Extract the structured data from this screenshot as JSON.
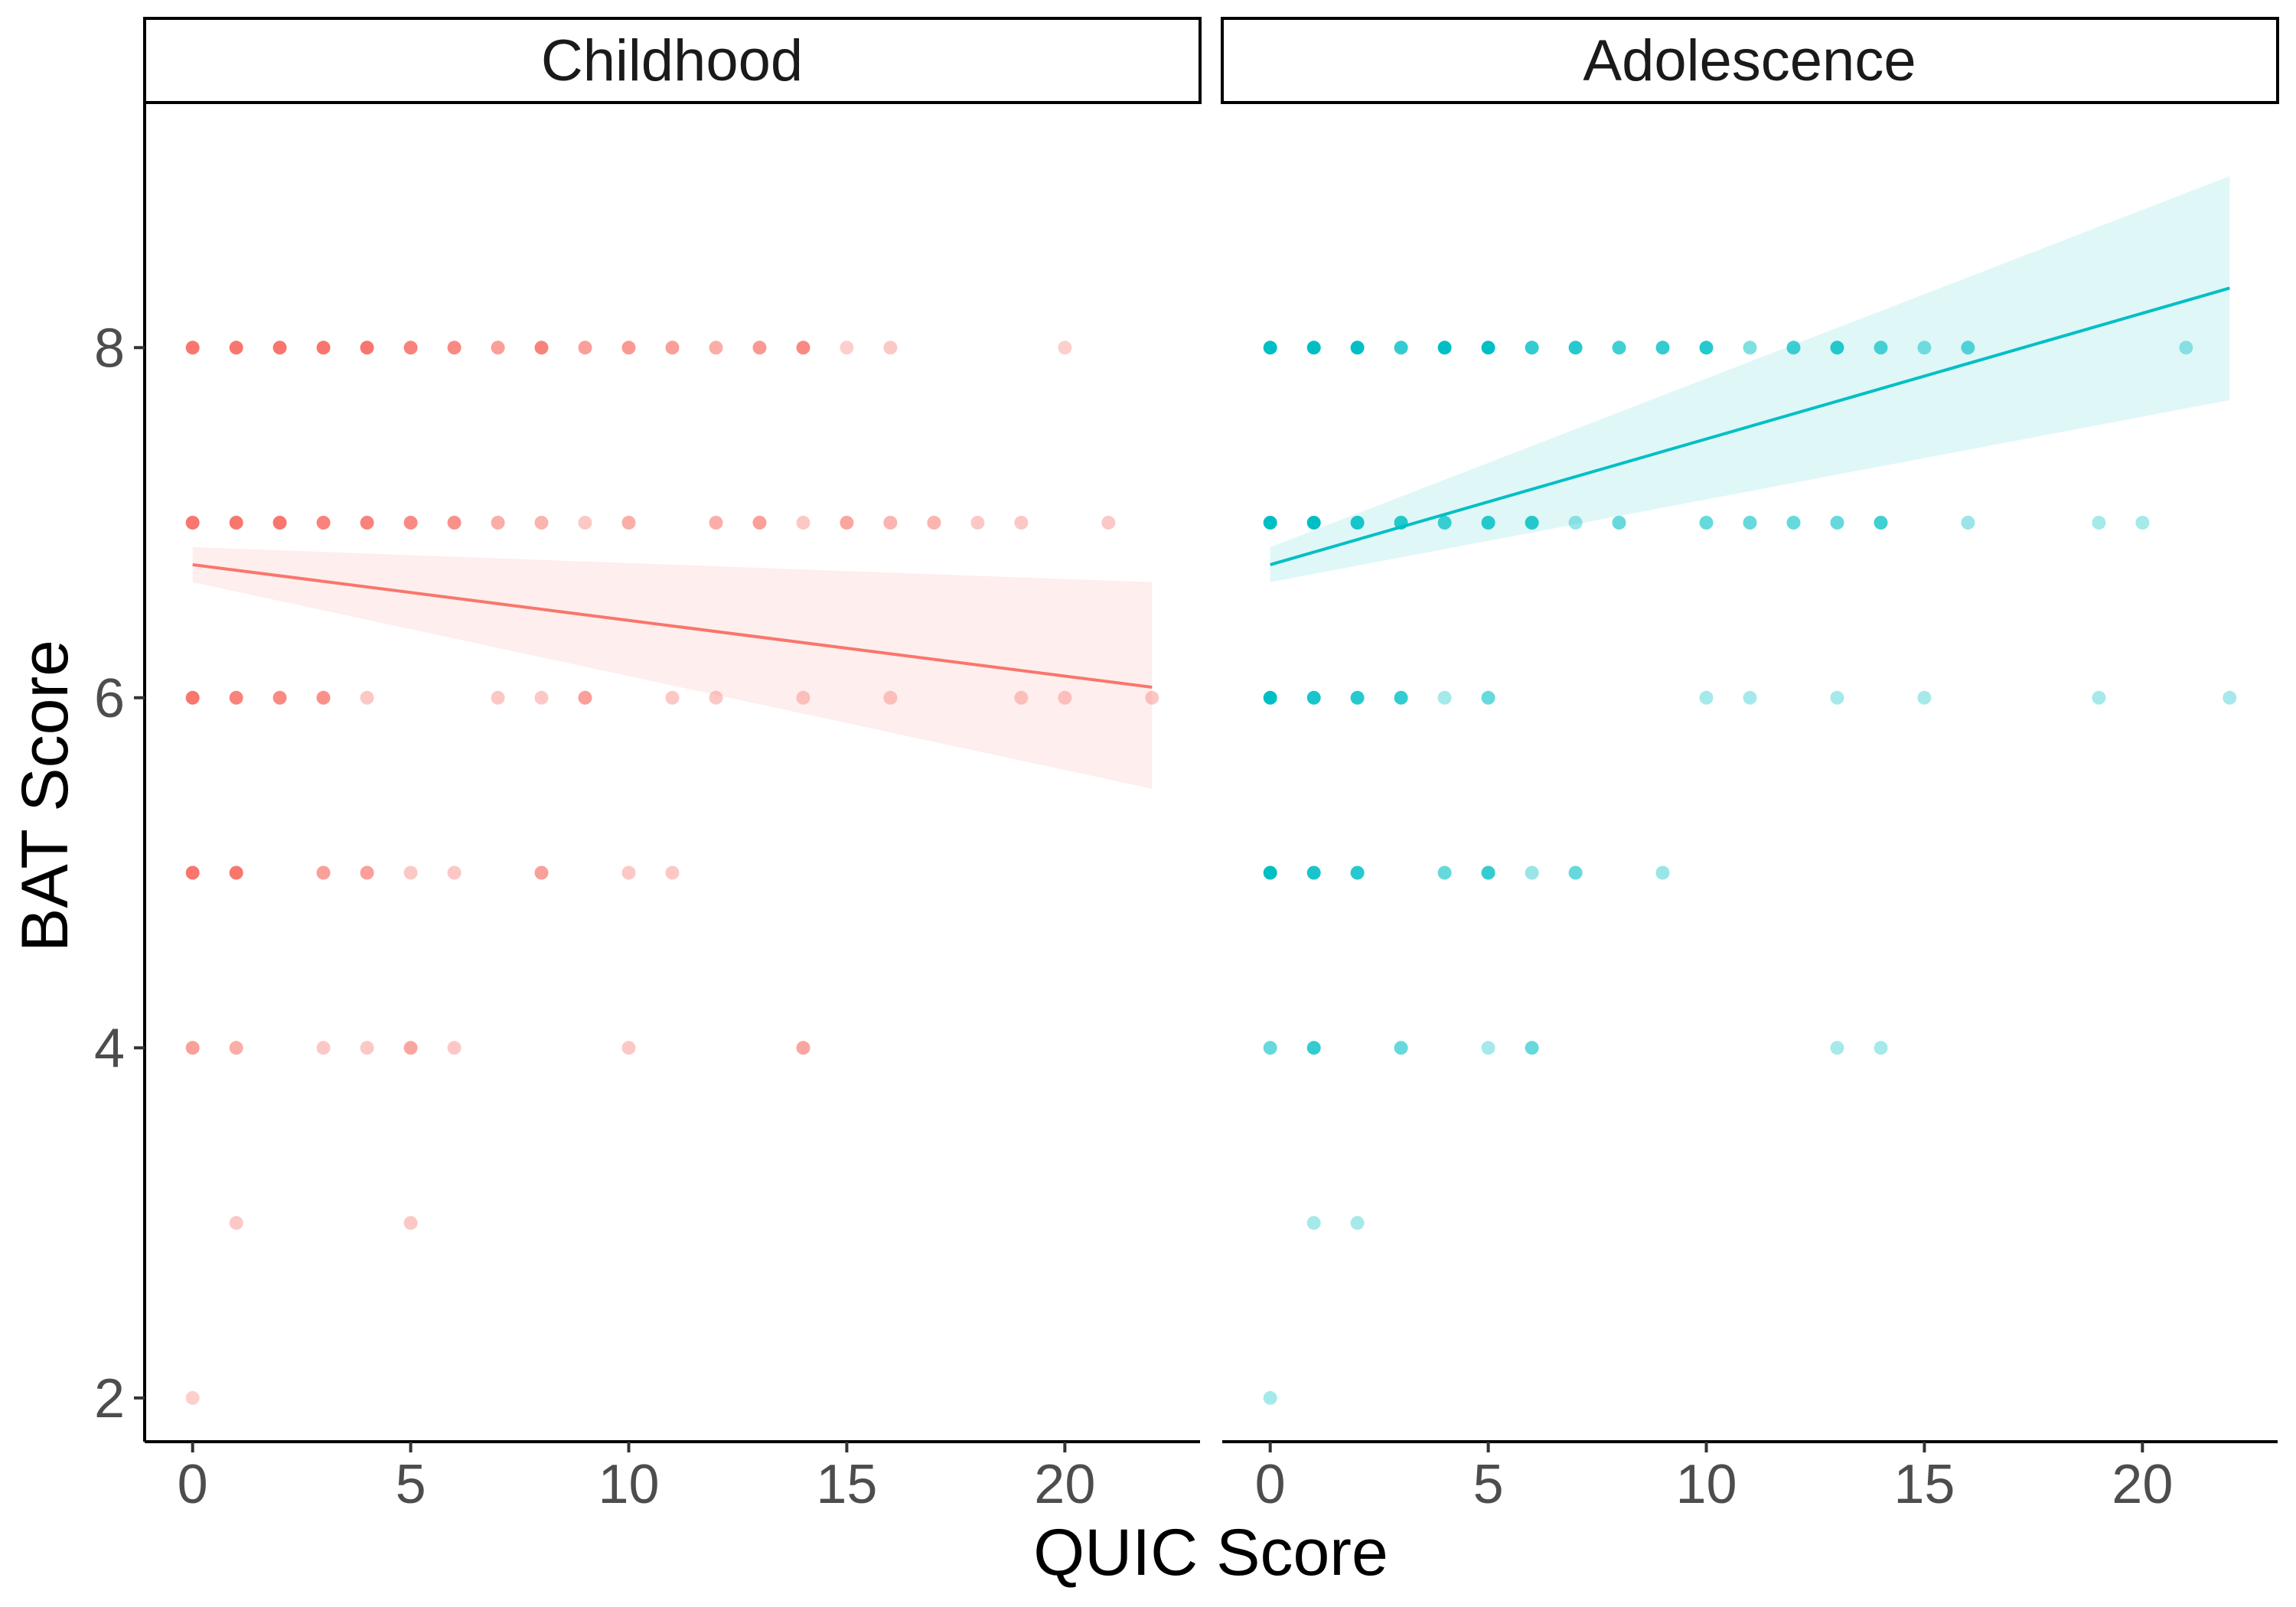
{
  "chart_data": {
    "type": "scatter",
    "xlabel": "QUIC Score",
    "ylabel": "BAT Score",
    "xlim": [
      -1.1,
      23.1
    ],
    "ylim": [
      1.75,
      9.4
    ],
    "x_ticks": [
      0,
      5,
      10,
      15,
      20
    ],
    "y_ticks": [
      2,
      4,
      6,
      8
    ],
    "grid": false,
    "legend": "none",
    "panels": [
      {
        "label": "Childhood",
        "color": "#F8766D",
        "points": [
          [
            0,
            8
          ],
          [
            1,
            8
          ],
          [
            2,
            8
          ],
          [
            3,
            8
          ],
          [
            4,
            8
          ],
          [
            5,
            8
          ],
          [
            6,
            8
          ],
          [
            7,
            8
          ],
          [
            8,
            8
          ],
          [
            9,
            8
          ],
          [
            10,
            8
          ],
          [
            11,
            8
          ],
          [
            12,
            8
          ],
          [
            13,
            8
          ],
          [
            14,
            8
          ],
          [
            15,
            8
          ],
          [
            16,
            8
          ],
          [
            20,
            8
          ],
          [
            0,
            7
          ],
          [
            1,
            7
          ],
          [
            2,
            7
          ],
          [
            3,
            7
          ],
          [
            4,
            7
          ],
          [
            5,
            7
          ],
          [
            6,
            7
          ],
          [
            7,
            7
          ],
          [
            8,
            7
          ],
          [
            9,
            7
          ],
          [
            10,
            7
          ],
          [
            12,
            7
          ],
          [
            13,
            7
          ],
          [
            14,
            7
          ],
          [
            15,
            7
          ],
          [
            16,
            7
          ],
          [
            17,
            7
          ],
          [
            18,
            7
          ],
          [
            19,
            7
          ],
          [
            21,
            7
          ],
          [
            0,
            6
          ],
          [
            1,
            6
          ],
          [
            2,
            6
          ],
          [
            3,
            6
          ],
          [
            4,
            6
          ],
          [
            7,
            6
          ],
          [
            8,
            6
          ],
          [
            9,
            6
          ],
          [
            11,
            6
          ],
          [
            12,
            6
          ],
          [
            14,
            6
          ],
          [
            16,
            6
          ],
          [
            19,
            6
          ],
          [
            20,
            6
          ],
          [
            22,
            6
          ],
          [
            0,
            5
          ],
          [
            1,
            5
          ],
          [
            3,
            5
          ],
          [
            4,
            5
          ],
          [
            5,
            5
          ],
          [
            6,
            5
          ],
          [
            8,
            5
          ],
          [
            10,
            5
          ],
          [
            11,
            5
          ],
          [
            0,
            4
          ],
          [
            1,
            4
          ],
          [
            3,
            4
          ],
          [
            4,
            4
          ],
          [
            5,
            4
          ],
          [
            6,
            4
          ],
          [
            10,
            4
          ],
          [
            14,
            4
          ],
          [
            1,
            3
          ],
          [
            5,
            3
          ],
          [
            0,
            2
          ]
        ],
        "opacity": [
          1,
          1,
          1,
          1,
          1,
          0.9,
          0.85,
          0.7,
          0.9,
          0.7,
          0.75,
          0.7,
          0.6,
          0.75,
          0.85,
          0.35,
          0.4,
          0.35,
          1,
          1,
          1,
          0.9,
          0.9,
          0.85,
          0.8,
          0.6,
          0.55,
          0.4,
          0.6,
          0.6,
          0.7,
          0.4,
          0.65,
          0.55,
          0.55,
          0.4,
          0.4,
          0.4,
          1,
          0.9,
          0.85,
          0.8,
          0.4,
          0.4,
          0.4,
          0.7,
          0.4,
          0.4,
          0.4,
          0.4,
          0.4,
          0.4,
          0.4,
          1,
          1,
          0.7,
          0.7,
          0.4,
          0.4,
          0.7,
          0.4,
          0.4,
          0.7,
          0.6,
          0.4,
          0.4,
          0.65,
          0.4,
          0.4,
          0.65,
          0.4,
          0.4,
          0.35
        ],
        "fit": {
          "x": [
            0,
            22
          ],
          "y": [
            6.76,
            6.06
          ],
          "ci_lower": [
            6.66,
            5.48
          ],
          "ci_upper": [
            6.86,
            6.66
          ]
        }
      },
      {
        "label": "Adolescence",
        "color": "#00BFC4",
        "points": [
          [
            0,
            8
          ],
          [
            1,
            8
          ],
          [
            2,
            8
          ],
          [
            3,
            8
          ],
          [
            4,
            8
          ],
          [
            5,
            8
          ],
          [
            6,
            8
          ],
          [
            7,
            8
          ],
          [
            8,
            8
          ],
          [
            9,
            8
          ],
          [
            10,
            8
          ],
          [
            11,
            8
          ],
          [
            12,
            8
          ],
          [
            13,
            8
          ],
          [
            14,
            8
          ],
          [
            15,
            8
          ],
          [
            16,
            8
          ],
          [
            21,
            8
          ],
          [
            0,
            7
          ],
          [
            1,
            7
          ],
          [
            2,
            7
          ],
          [
            3,
            7
          ],
          [
            4,
            7
          ],
          [
            5,
            7
          ],
          [
            6,
            7
          ],
          [
            7,
            7
          ],
          [
            8,
            7
          ],
          [
            10,
            7
          ],
          [
            11,
            7
          ],
          [
            12,
            7
          ],
          [
            13,
            7
          ],
          [
            14,
            7
          ],
          [
            16,
            7
          ],
          [
            19,
            7
          ],
          [
            20,
            7
          ],
          [
            0,
            6
          ],
          [
            1,
            6
          ],
          [
            2,
            6
          ],
          [
            3,
            6
          ],
          [
            4,
            6
          ],
          [
            5,
            6
          ],
          [
            10,
            6
          ],
          [
            11,
            6
          ],
          [
            13,
            6
          ],
          [
            15,
            6
          ],
          [
            19,
            6
          ],
          [
            22,
            6
          ],
          [
            0,
            5
          ],
          [
            1,
            5
          ],
          [
            2,
            5
          ],
          [
            4,
            5
          ],
          [
            5,
            5
          ],
          [
            6,
            5
          ],
          [
            7,
            5
          ],
          [
            9,
            5
          ],
          [
            0,
            4
          ],
          [
            1,
            4
          ],
          [
            3,
            4
          ],
          [
            5,
            4
          ],
          [
            6,
            4
          ],
          [
            13,
            4
          ],
          [
            14,
            4
          ],
          [
            1,
            3
          ],
          [
            2,
            3
          ],
          [
            0,
            2
          ]
        ],
        "opacity": [
          1,
          1,
          1,
          0.8,
          1,
          1,
          0.8,
          0.85,
          0.75,
          0.8,
          0.85,
          0.5,
          0.75,
          0.85,
          0.7,
          0.5,
          0.65,
          0.4,
          1,
          1,
          0.9,
          0.85,
          0.75,
          0.85,
          0.85,
          0.4,
          0.6,
          0.6,
          0.6,
          0.6,
          0.6,
          0.75,
          0.4,
          0.35,
          0.35,
          1,
          0.9,
          0.85,
          0.8,
          0.35,
          0.6,
          0.35,
          0.35,
          0.35,
          0.35,
          0.35,
          0.35,
          1,
          0.9,
          0.85,
          0.6,
          0.8,
          0.4,
          0.6,
          0.4,
          0.6,
          0.8,
          0.6,
          0.35,
          0.6,
          0.35,
          0.35,
          0.35,
          0.35,
          0.35
        ],
        "fit": {
          "x": [
            0,
            22
          ],
          "y": [
            6.76,
            8.34
          ],
          "ci_lower": [
            6.66,
            7.7
          ],
          "ci_upper": [
            6.86,
            8.98
          ]
        }
      }
    ]
  }
}
